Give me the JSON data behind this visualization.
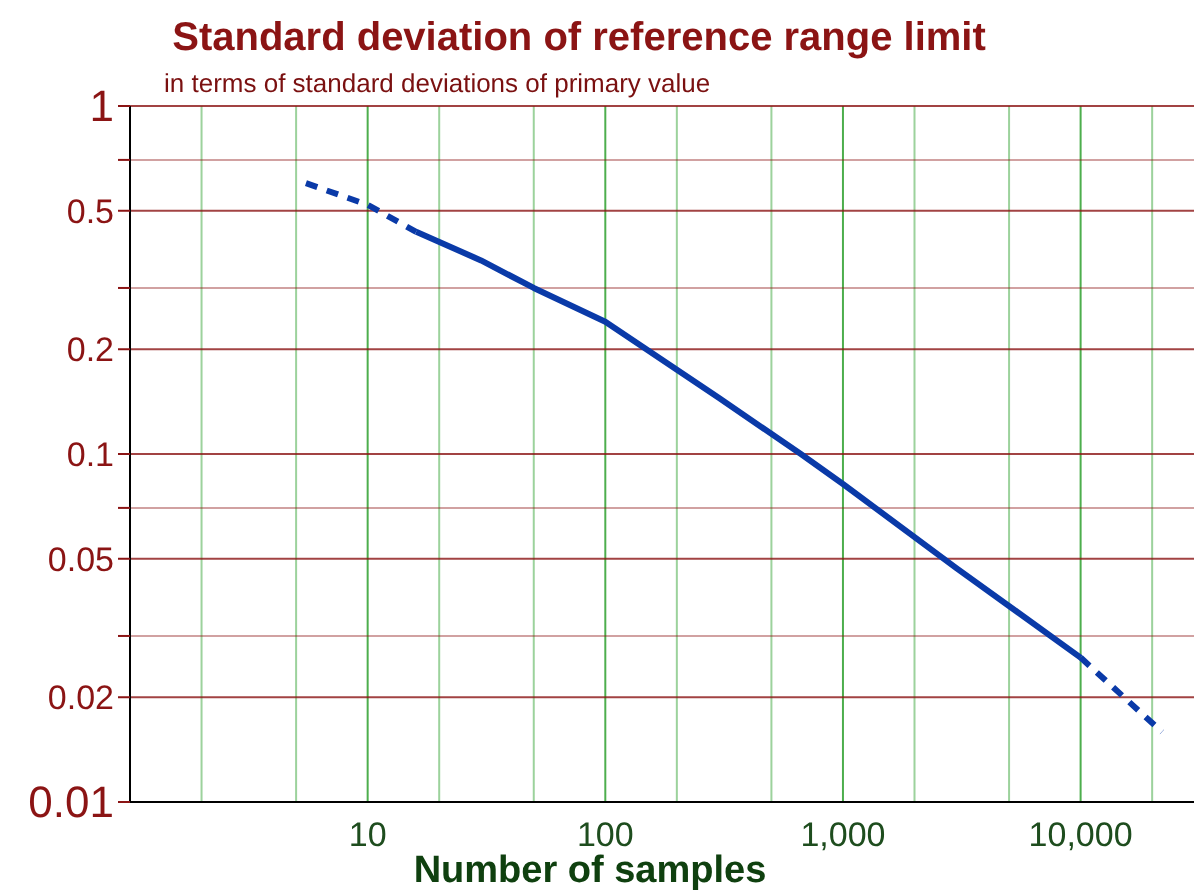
{
  "chart_data": {
    "type": "line",
    "title": "Standard deviation of reference range limit",
    "subtitle": "in terms of standard deviations of primary value",
    "xlabel": "Number of samples",
    "log": "xy",
    "grid": true,
    "marker": "none",
    "xlim": [
      1,
      30000
    ],
    "ylim": [
      0.01,
      1
    ],
    "xticks": [
      {
        "value": 2,
        "label": null
      },
      {
        "value": 5,
        "label": null
      },
      10,
      {
        "value": 20,
        "label": null
      },
      {
        "value": 50,
        "label": null
      },
      100,
      {
        "value": 200,
        "label": null
      },
      {
        "value": 500,
        "label": null
      },
      {
        "value": 1000,
        "label": "1,000"
      },
      {
        "value": 2000,
        "label": null
      },
      {
        "value": 5000,
        "label": null
      },
      {
        "value": 10000,
        "label": "10,000"
      },
      {
        "value": 20000,
        "label": null
      }
    ],
    "yticks": [
      0.01,
      0.02,
      {
        "value": 0.03,
        "label": null
      },
      0.05,
      {
        "value": 0.07,
        "label": null
      },
      0.1,
      0.2,
      {
        "value": 0.3,
        "label": null
      },
      0.5,
      {
        "value": 0.7,
        "label": null
      },
      1
    ],
    "series": [
      {
        "color": "#0a3aa8",
        "line_style": "dashed",
        "x": [
          5.5,
          10,
          16
        ],
        "values": [
          0.6,
          0.52,
          0.435
        ]
      },
      {
        "color": "#0a3aa8",
        "line_style": "solid",
        "x": [
          16,
          30,
          50,
          100,
          300,
          665,
          1000,
          3000,
          10000
        ],
        "values": [
          0.435,
          0.36,
          0.3,
          0.24,
          0.145,
          0.1,
          0.082,
          0.047,
          0.026
        ]
      },
      {
        "color": "#0a3aa8",
        "line_style": "dashed",
        "x": [
          10000,
          22000
        ],
        "values": [
          0.026,
          0.0159
        ]
      }
    ]
  }
}
